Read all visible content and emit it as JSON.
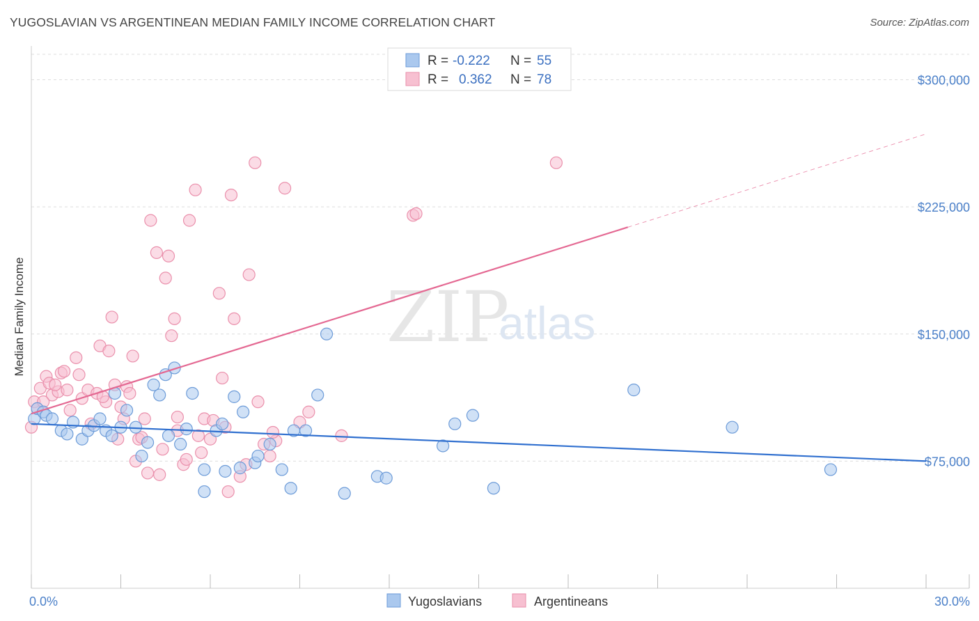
{
  "header": {
    "title": "YUGOSLAVIAN VS ARGENTINEAN MEDIAN FAMILY INCOME CORRELATION CHART",
    "source": "Source: ZipAtlas.com"
  },
  "watermark": {
    "zip": "ZIP",
    "atlas": "atlas"
  },
  "legend": {
    "rows": [
      {
        "r_label": "R =",
        "r_value": "-0.222",
        "n_label": "N =",
        "n_value": "55"
      },
      {
        "r_label": "R =",
        "r_value": "0.362",
        "n_label": "N =",
        "n_value": "78"
      }
    ],
    "bottom": [
      "Yugoslavians",
      "Argentineans"
    ]
  },
  "colors": {
    "blue_fill": "#aac8ee",
    "blue_stroke": "#6c9bd8",
    "blue_line": "#2f6fcf",
    "pink_fill": "#f7c0d1",
    "pink_stroke": "#ea8fab",
    "pink_line": "#e46892",
    "grid": "#dedede",
    "tick_text": "#4a7fc8"
  },
  "chart_data": {
    "type": "scatter",
    "title": "YUGOSLAVIAN VS ARGENTINEAN MEDIAN FAMILY INCOME CORRELATION CHART",
    "xlabel": "",
    "ylabel": "Median Family Income",
    "xlim": [
      0,
      30
    ],
    "ylim": [
      0,
      315000
    ],
    "x_tick_labels": [
      "0.0%",
      "30.0%"
    ],
    "y_ticks": [
      75000,
      150000,
      225000,
      300000
    ],
    "y_tick_labels": [
      "$75,000",
      "$150,000",
      "$225,000",
      "$300,000"
    ],
    "series": [
      {
        "name": "Yugoslavians",
        "r": -0.222,
        "n": 55,
        "trend": {
          "x0": 0,
          "y0": 97000,
          "x1": 30,
          "y1": 75000
        },
        "points": [
          [
            0.1,
            100000
          ],
          [
            0.2,
            106000
          ],
          [
            0.4,
            104000
          ],
          [
            0.5,
            102000
          ],
          [
            0.7,
            100000
          ],
          [
            1.0,
            93000
          ],
          [
            1.2,
            91000
          ],
          [
            1.4,
            98000
          ],
          [
            1.7,
            88000
          ],
          [
            1.9,
            93000
          ],
          [
            2.1,
            96000
          ],
          [
            2.3,
            100000
          ],
          [
            2.5,
            93000
          ],
          [
            2.7,
            90000
          ],
          [
            2.8,
            115000
          ],
          [
            3.0,
            95000
          ],
          [
            3.2,
            105000
          ],
          [
            3.5,
            95000
          ],
          [
            3.7,
            78000
          ],
          [
            3.9,
            86000
          ],
          [
            4.1,
            120000
          ],
          [
            4.3,
            114000
          ],
          [
            4.5,
            126000
          ],
          [
            4.6,
            90000
          ],
          [
            4.8,
            130000
          ],
          [
            5.0,
            85000
          ],
          [
            5.2,
            94000
          ],
          [
            5.4,
            115000
          ],
          [
            5.8,
            70000
          ],
          [
            5.8,
            57000
          ],
          [
            6.2,
            93000
          ],
          [
            6.4,
            97000
          ],
          [
            6.5,
            69000
          ],
          [
            6.8,
            113000
          ],
          [
            7.1,
            104000
          ],
          [
            7.0,
            71000
          ],
          [
            7.5,
            74000
          ],
          [
            7.6,
            78000
          ],
          [
            8.0,
            85000
          ],
          [
            8.4,
            70000
          ],
          [
            8.7,
            59000
          ],
          [
            8.8,
            93000
          ],
          [
            9.2,
            93000
          ],
          [
            9.6,
            114000
          ],
          [
            9.9,
            150000
          ],
          [
            10.5,
            56000
          ],
          [
            11.6,
            66000
          ],
          [
            11.9,
            65000
          ],
          [
            13.8,
            84000
          ],
          [
            14.2,
            97000
          ],
          [
            14.8,
            102000
          ],
          [
            15.5,
            59000
          ],
          [
            20.2,
            117000
          ],
          [
            23.5,
            95000
          ],
          [
            26.8,
            70000
          ]
        ]
      },
      {
        "name": "Argentineans",
        "r": 0.362,
        "n": 78,
        "trend": {
          "x0": 0,
          "y0": 103000,
          "x1": 20.0,
          "y1": 213000
        },
        "trend_dashed_to": {
          "x": 30,
          "y": 268000
        },
        "points": [
          [
            0.0,
            95000
          ],
          [
            0.1,
            110000
          ],
          [
            0.2,
            106000
          ],
          [
            0.3,
            118000
          ],
          [
            0.5,
            125000
          ],
          [
            0.6,
            121000
          ],
          [
            0.7,
            114000
          ],
          [
            0.9,
            116000
          ],
          [
            1.0,
            127000
          ],
          [
            1.2,
            117000
          ],
          [
            1.3,
            105000
          ],
          [
            1.5,
            136000
          ],
          [
            1.6,
            126000
          ],
          [
            1.7,
            112000
          ],
          [
            1.9,
            117000
          ],
          [
            2.0,
            97000
          ],
          [
            2.2,
            115000
          ],
          [
            2.3,
            143000
          ],
          [
            2.5,
            110000
          ],
          [
            2.6,
            140000
          ],
          [
            2.7,
            160000
          ],
          [
            2.9,
            88000
          ],
          [
            3.0,
            107000
          ],
          [
            3.1,
            100000
          ],
          [
            3.2,
            119000
          ],
          [
            3.4,
            137000
          ],
          [
            3.5,
            75000
          ],
          [
            3.6,
            88000
          ],
          [
            3.8,
            100000
          ],
          [
            3.9,
            68000
          ],
          [
            4.0,
            217000
          ],
          [
            4.2,
            198000
          ],
          [
            4.3,
            67000
          ],
          [
            4.5,
            183000
          ],
          [
            4.6,
            196000
          ],
          [
            4.7,
            149000
          ],
          [
            4.8,
            159000
          ],
          [
            4.9,
            101000
          ],
          [
            5.1,
            73000
          ],
          [
            5.3,
            217000
          ],
          [
            5.5,
            235000
          ],
          [
            5.6,
            90000
          ],
          [
            5.8,
            100000
          ],
          [
            6.0,
            88000
          ],
          [
            6.3,
            174000
          ],
          [
            6.4,
            124000
          ],
          [
            6.5,
            95000
          ],
          [
            6.7,
            232000
          ],
          [
            6.8,
            159000
          ],
          [
            7.0,
            66000
          ],
          [
            7.3,
            185000
          ],
          [
            7.5,
            251000
          ],
          [
            7.6,
            110000
          ],
          [
            7.8,
            85000
          ],
          [
            8.0,
            78000
          ],
          [
            8.2,
            87000
          ],
          [
            8.5,
            236000
          ],
          [
            9.0,
            98000
          ],
          [
            10.4,
            90000
          ],
          [
            12.8,
            220000
          ],
          [
            12.9,
            221000
          ],
          [
            17.6,
            251000
          ],
          [
            0.4,
            110000
          ],
          [
            0.8,
            120000
          ],
          [
            1.1,
            128000
          ],
          [
            2.4,
            113000
          ],
          [
            2.8,
            120000
          ],
          [
            3.3,
            115000
          ],
          [
            4.4,
            82000
          ],
          [
            4.9,
            93000
          ],
          [
            5.2,
            76000
          ],
          [
            5.7,
            80000
          ],
          [
            6.1,
            99000
          ],
          [
            6.6,
            57000
          ],
          [
            7.2,
            73000
          ],
          [
            8.1,
            92000
          ],
          [
            9.3,
            104000
          ],
          [
            3.7,
            89000
          ]
        ]
      }
    ]
  }
}
